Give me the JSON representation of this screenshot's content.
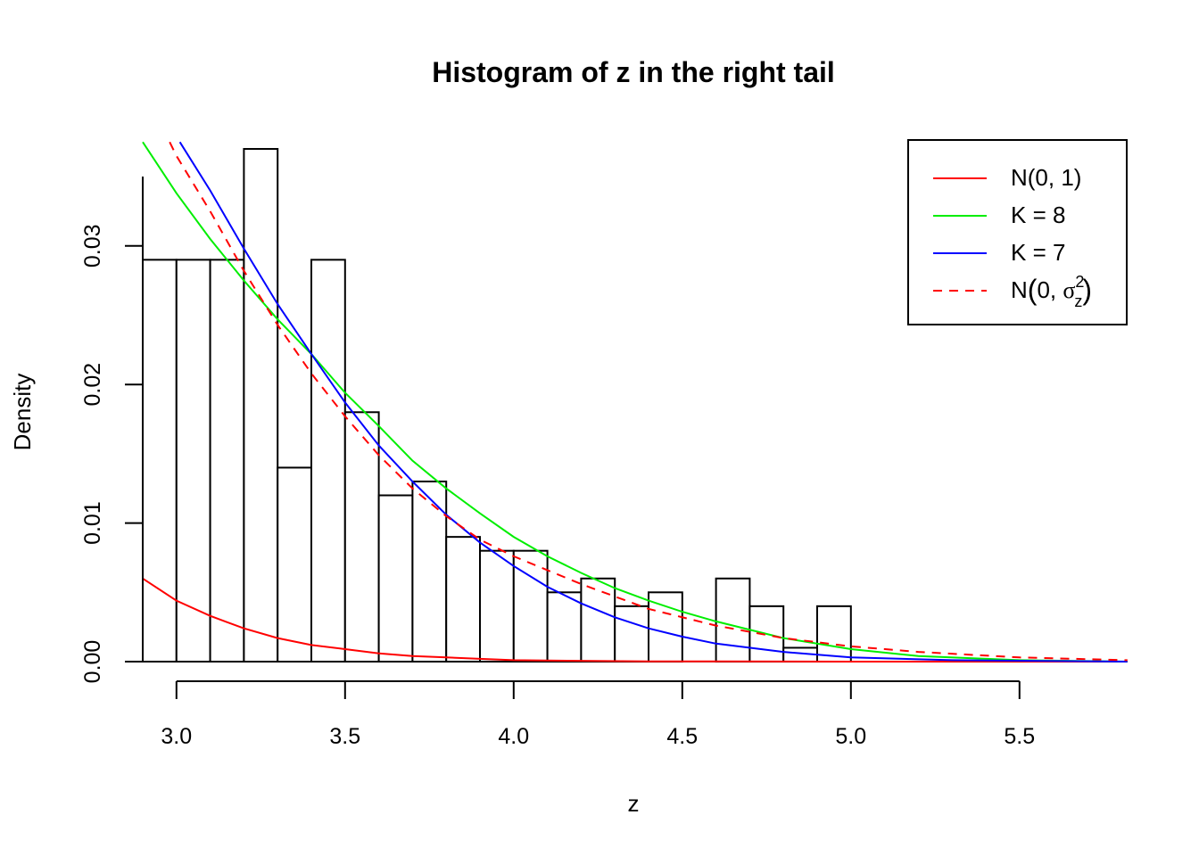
{
  "chart_data": {
    "type": "bar",
    "title": "Histogram of z in the right tail",
    "xlabel": "z",
    "ylabel": "Density",
    "xlim": [
      2.9,
      5.82
    ],
    "ylim": [
      0,
      0.0375
    ],
    "x_ticks": [
      3.0,
      3.5,
      4.0,
      4.5,
      5.0,
      5.5
    ],
    "x_tick_labels": [
      "3.0",
      "3.5",
      "4.0",
      "4.5",
      "5.0",
      "5.5"
    ],
    "y_ticks": [
      0.0,
      0.01,
      0.02,
      0.03
    ],
    "y_tick_labels": [
      "0.00",
      "0.01",
      "0.02",
      "0.03"
    ],
    "grid": false,
    "legend_position": "top-right",
    "histogram": {
      "bins": [
        {
          "x0": 2.9,
          "x1": 3.0,
          "density": 0.029
        },
        {
          "x0": 3.0,
          "x1": 3.1,
          "density": 0.029
        },
        {
          "x0": 3.1,
          "x1": 3.2,
          "density": 0.029
        },
        {
          "x0": 3.2,
          "x1": 3.3,
          "density": 0.037
        },
        {
          "x0": 3.3,
          "x1": 3.4,
          "density": 0.014
        },
        {
          "x0": 3.4,
          "x1": 3.5,
          "density": 0.029
        },
        {
          "x0": 3.5,
          "x1": 3.6,
          "density": 0.018
        },
        {
          "x0": 3.6,
          "x1": 3.7,
          "density": 0.012
        },
        {
          "x0": 3.7,
          "x1": 3.8,
          "density": 0.013
        },
        {
          "x0": 3.8,
          "x1": 3.9,
          "density": 0.009
        },
        {
          "x0": 3.9,
          "x1": 4.0,
          "density": 0.008
        },
        {
          "x0": 4.0,
          "x1": 4.1,
          "density": 0.008
        },
        {
          "x0": 4.1,
          "x1": 4.2,
          "density": 0.005
        },
        {
          "x0": 4.2,
          "x1": 4.3,
          "density": 0.006
        },
        {
          "x0": 4.3,
          "x1": 4.4,
          "density": 0.004
        },
        {
          "x0": 4.4,
          "x1": 4.5,
          "density": 0.005
        },
        {
          "x0": 4.5,
          "x1": 4.6,
          "density": 0.0
        },
        {
          "x0": 4.6,
          "x1": 4.7,
          "density": 0.006
        },
        {
          "x0": 4.7,
          "x1": 4.8,
          "density": 0.004
        },
        {
          "x0": 4.8,
          "x1": 4.9,
          "density": 0.001
        },
        {
          "x0": 4.9,
          "x1": 5.0,
          "density": 0.004
        }
      ]
    },
    "series": [
      {
        "name": "N(0, 1)",
        "color": "#ff0000",
        "dash": "solid",
        "x": [
          2.9,
          3.0,
          3.1,
          3.2,
          3.3,
          3.4,
          3.5,
          3.6,
          3.7,
          3.8,
          3.9,
          4.0,
          4.2,
          4.4,
          4.6,
          5.0,
          5.5,
          5.82
        ],
        "values": [
          0.006,
          0.0044,
          0.0033,
          0.0024,
          0.0017,
          0.0012,
          0.0009,
          0.0006,
          0.0004,
          0.0003,
          0.0002,
          0.0001,
          6e-05,
          2e-05,
          1e-05,
          0.0,
          0.0,
          0.0
        ]
      },
      {
        "name": "K = 8",
        "color": "#00ee00",
        "dash": "solid",
        "x": [
          2.9,
          3.0,
          3.1,
          3.2,
          3.3,
          3.4,
          3.5,
          3.6,
          3.7,
          3.8,
          3.9,
          4.0,
          4.1,
          4.2,
          4.3,
          4.4,
          4.5,
          4.6,
          4.8,
          5.0,
          5.2,
          5.5,
          5.82
        ],
        "values": [
          0.0375,
          0.0338,
          0.0305,
          0.0275,
          0.0247,
          0.0222,
          0.0194,
          0.017,
          0.0145,
          0.0125,
          0.0107,
          0.009,
          0.0076,
          0.0064,
          0.0053,
          0.0044,
          0.0036,
          0.0029,
          0.0017,
          0.0009,
          0.0004,
          0.0001,
          0.0
        ]
      },
      {
        "name": "K = 7",
        "color": "#0000ff",
        "dash": "solid",
        "x": [
          3.01,
          3.1,
          3.2,
          3.3,
          3.4,
          3.5,
          3.6,
          3.7,
          3.8,
          3.9,
          4.0,
          4.1,
          4.2,
          4.3,
          4.4,
          4.5,
          4.6,
          4.8,
          5.0,
          5.3,
          5.82
        ],
        "values": [
          0.0375,
          0.034,
          0.0298,
          0.0258,
          0.0222,
          0.0187,
          0.0156,
          0.013,
          0.0106,
          0.0086,
          0.0069,
          0.0054,
          0.0042,
          0.0032,
          0.0024,
          0.0018,
          0.0013,
          0.0007,
          0.0003,
          0.0001,
          0.0
        ]
      },
      {
        "name": "N(0, σz²)",
        "color": "#ff0000",
        "dash": "dashed",
        "x": [
          2.98,
          3.0,
          3.1,
          3.2,
          3.3,
          3.4,
          3.5,
          3.6,
          3.7,
          3.8,
          3.9,
          4.0,
          4.2,
          4.4,
          4.6,
          4.8,
          5.0,
          5.2,
          5.5,
          5.82
        ],
        "values": [
          0.0375,
          0.0365,
          0.0325,
          0.0282,
          0.0243,
          0.0208,
          0.0177,
          0.0149,
          0.0125,
          0.0105,
          0.0088,
          0.0076,
          0.0056,
          0.0038,
          0.0026,
          0.0017,
          0.0011,
          0.0007,
          0.0003,
          0.0001
        ]
      }
    ],
    "legend": {
      "items": [
        {
          "label": "N(0, 1)",
          "color": "#ff0000",
          "dash": "solid"
        },
        {
          "label": "K = 8",
          "color": "#00ee00",
          "dash": "solid"
        },
        {
          "label": "K = 7",
          "color": "#0000ff",
          "dash": "solid"
        },
        {
          "label_main": "N",
          "label_open": "(",
          "label_args": "0, ",
          "label_sigma": "σ",
          "label_sub": "z",
          "label_sup": "2",
          "label_close": ")",
          "color": "#ff0000",
          "dash": "dashed"
        }
      ]
    }
  }
}
